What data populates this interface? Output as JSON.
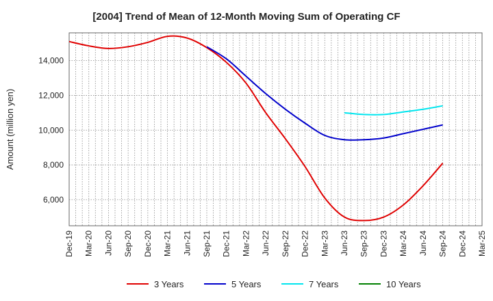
{
  "chart_data": {
    "type": "line",
    "title": "[2004]  Trend of Mean of 12-Month Moving Sum of Operating CF",
    "xlabel": "",
    "ylabel": "Amount (million yen)",
    "ylim": [
      4500,
      15600
    ],
    "yticks": [
      6000,
      8000,
      10000,
      12000,
      14000
    ],
    "ytick_labels": [
      "6,000",
      "8,000",
      "10,000",
      "12,000",
      "14,000"
    ],
    "grid": true,
    "legend_position": "bottom-center",
    "categories": [
      "Dec-19",
      "Mar-20",
      "Jun-20",
      "Sep-20",
      "Dec-20",
      "Mar-21",
      "Jun-21",
      "Sep-21",
      "Dec-21",
      "Mar-22",
      "Jun-22",
      "Sep-22",
      "Dec-22",
      "Mar-23",
      "Jun-23",
      "Sep-23",
      "Dec-23",
      "Mar-24",
      "Jun-24",
      "Sep-24",
      "Dec-24",
      "Mar-25"
    ],
    "series": [
      {
        "name": "3 Years",
        "color": "#e00000",
        "values": [
          15100,
          14850,
          14700,
          14800,
          15050,
          15400,
          15300,
          14750,
          13900,
          12700,
          11000,
          9500,
          7900,
          6100,
          5000,
          4800,
          5000,
          5700,
          6800,
          8100,
          null,
          null
        ]
      },
      {
        "name": "5 Years",
        "color": "#0000cc",
        "values": [
          null,
          null,
          null,
          null,
          null,
          null,
          null,
          14800,
          14100,
          13100,
          12100,
          11200,
          10400,
          9700,
          9450,
          9450,
          9550,
          9800,
          10050,
          10300,
          null,
          null
        ]
      },
      {
        "name": "7 Years",
        "color": "#00e5ee",
        "values": [
          null,
          null,
          null,
          null,
          null,
          null,
          null,
          null,
          null,
          null,
          null,
          null,
          null,
          null,
          11000,
          10900,
          10900,
          11050,
          11200,
          11400,
          null,
          null
        ]
      },
      {
        "name": "10 Years",
        "color": "#008000",
        "values": [
          null,
          null,
          null,
          null,
          null,
          null,
          null,
          null,
          null,
          null,
          null,
          null,
          null,
          null,
          null,
          null,
          null,
          null,
          null,
          null,
          null,
          null
        ]
      }
    ]
  }
}
